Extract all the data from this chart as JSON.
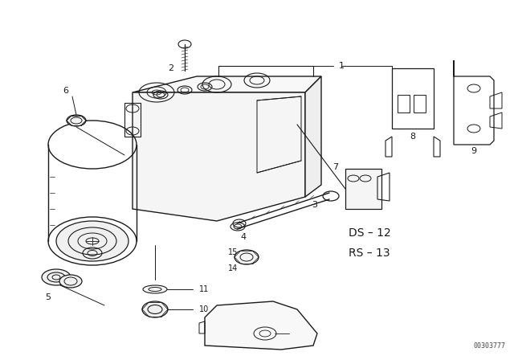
{
  "bg_color": "#ffffff",
  "line_color": "#1a1a1a",
  "fig_width": 6.4,
  "fig_height": 4.48,
  "dpi": 100,
  "watermark_text": "00303777",
  "label_fontsize": 8,
  "ds_rs_fontsize": 10
}
